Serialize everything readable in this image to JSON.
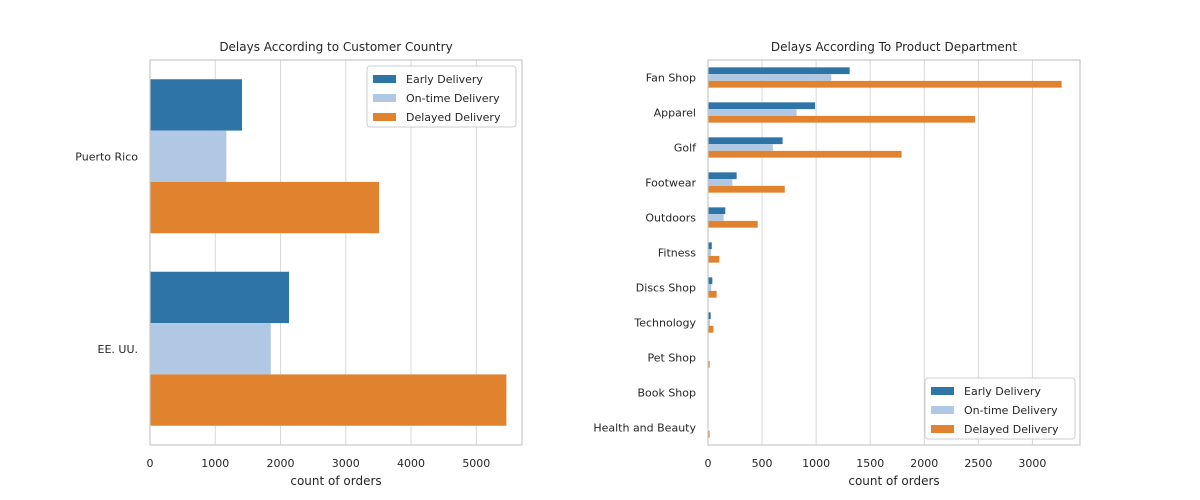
{
  "colors": {
    "early": "#2e74a6",
    "ontime": "#b0c8e4",
    "delayed": "#e0822e",
    "grid": "#d8d8d8",
    "frame": "#c8c8c8"
  },
  "legend_labels": [
    "Early Delivery",
    "On-time Delivery",
    "Delayed Delivery"
  ],
  "chart_data": [
    {
      "type": "bar",
      "orientation": "horizontal",
      "title": "Delays According to Customer Country",
      "xlabel": "count of orders",
      "ylabel": "",
      "categories": [
        "Puerto Rico",
        "EE. UU."
      ],
      "series": [
        {
          "name": "Early Delivery",
          "values": [
            1410,
            2130
          ]
        },
        {
          "name": "On-time Delivery",
          "values": [
            1170,
            1850
          ]
        },
        {
          "name": "Delayed Delivery",
          "values": [
            3510,
            5460
          ]
        }
      ],
      "xlim": [
        0,
        5700
      ],
      "xticks": [
        0,
        1000,
        2000,
        3000,
        4000,
        5000
      ],
      "grid": true,
      "legend_position": "top-right"
    },
    {
      "type": "bar",
      "orientation": "horizontal",
      "title": "Delays According To Product Department",
      "xlabel": "count of orders",
      "ylabel": "",
      "categories": [
        "Fan Shop",
        "Apparel",
        "Golf",
        "Footwear",
        "Outdoors",
        "Fitness",
        "Discs Shop",
        "Technology",
        "Pet Shop",
        "Book Shop",
        "Health and Beauty"
      ],
      "series": [
        {
          "name": "Early Delivery",
          "values": [
            1310,
            990,
            690,
            265,
            160,
            35,
            40,
            25,
            3,
            2,
            3
          ]
        },
        {
          "name": "On-time Delivery",
          "values": [
            1140,
            820,
            600,
            225,
            145,
            28,
            30,
            18,
            2,
            1,
            2
          ]
        },
        {
          "name": "Delayed Delivery",
          "values": [
            3270,
            2470,
            1790,
            710,
            460,
            105,
            80,
            50,
            15,
            5,
            15
          ]
        }
      ],
      "xlim": [
        0,
        3440
      ],
      "xticks": [
        0,
        500,
        1000,
        1500,
        2000,
        2500,
        3000
      ],
      "grid": true,
      "legend_position": "lower-right"
    }
  ]
}
